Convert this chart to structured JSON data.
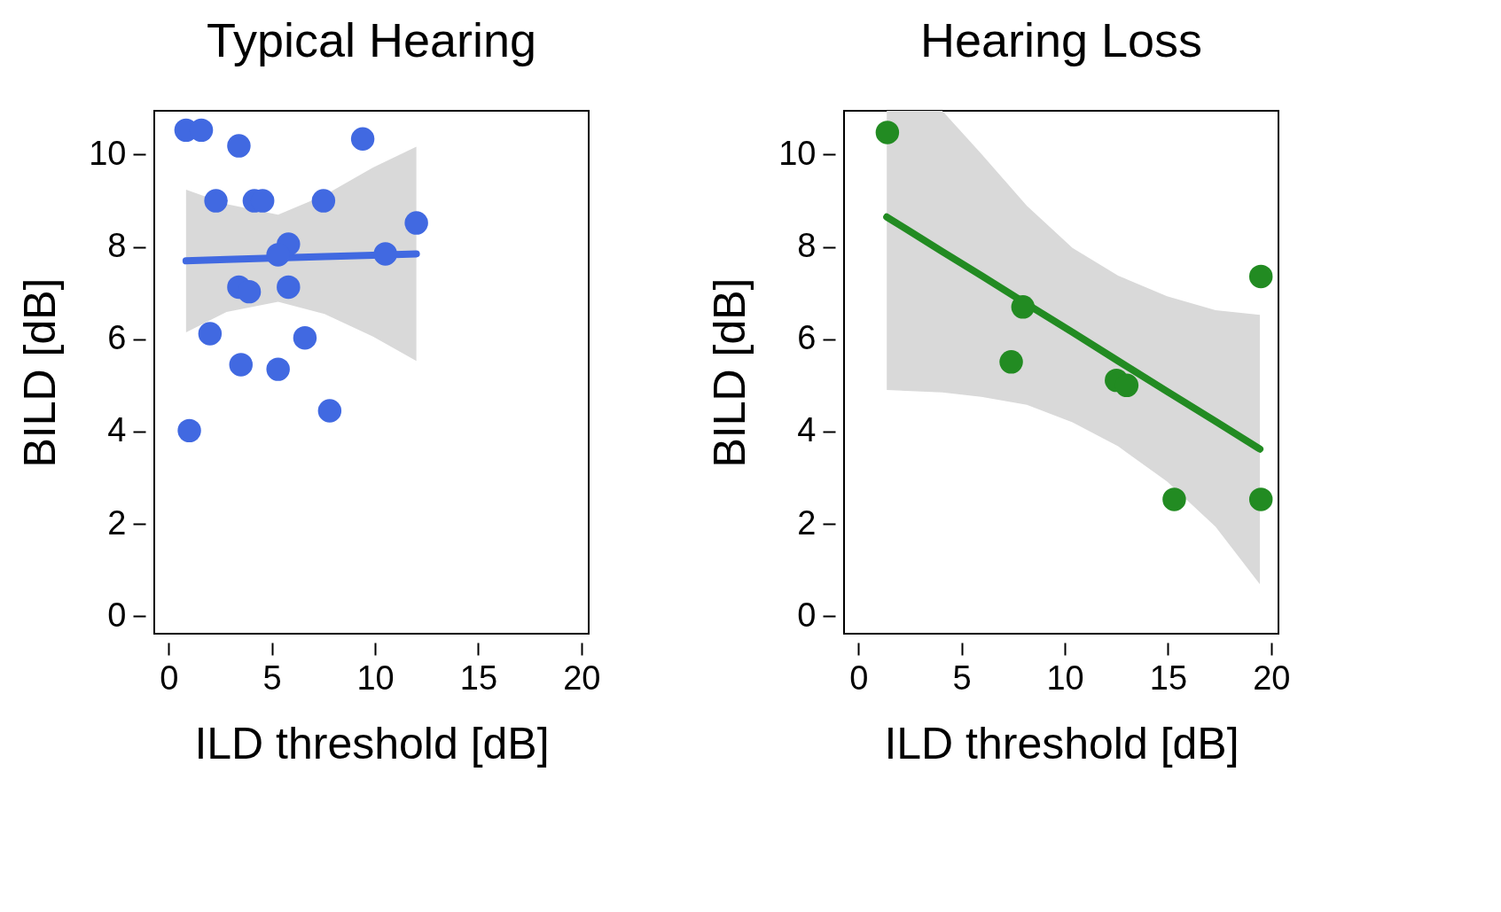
{
  "chart_data": [
    {
      "type": "scatter",
      "title": "Typical Hearing",
      "xlabel": "ILD threshold [dB]",
      "ylabel": "BILD [dB]",
      "xlim": [
        -0.7,
        20.35
      ],
      "ylim": [
        -0.38,
        10.95
      ],
      "xticks": [
        0,
        5,
        10,
        15,
        20
      ],
      "yticks": [
        0,
        2,
        4,
        6,
        8,
        10
      ],
      "grid": false,
      "series": [
        {
          "type": "line",
          "color": "#4169e1",
          "line_style": "solid",
          "x": [
            0.84,
            2.8,
            5.3,
            7.55,
            9.9,
            12
          ],
          "values": [
            7.7,
            7.73,
            7.76,
            7.79,
            7.82,
            7.85
          ],
          "lower": [
            6.15,
            6.59,
            6.81,
            6.55,
            6.06,
            5.53
          ],
          "upper": [
            9.24,
            8.93,
            8.7,
            9.12,
            9.72,
            10.17
          ]
        },
        {
          "color": "#4169e1",
          "marker": "circle",
          "x": [
            0.84,
            1.58,
            3.4,
            9.4,
            2.29,
            4.15,
            4.55,
            7.5,
            12,
            5.8,
            5.3,
            10.5,
            3.4,
            3.9,
            5.8,
            2,
            6.6,
            3.5,
            5.3,
            7.8,
            1
          ],
          "values": [
            10.53,
            10.53,
            10.19,
            10.34,
            9,
            9,
            9,
            9,
            8.52,
            8.06,
            7.83,
            7.85,
            7.13,
            7.03,
            7.13,
            6.12,
            6.03,
            5.45,
            5.35,
            4.45,
            4.02
          ]
        }
      ]
    },
    {
      "type": "scatter",
      "title": "Hearing Loss",
      "xlabel": "ILD threshold [dB]",
      "ylabel": "BILD [dB]",
      "xlim": [
        -0.7,
        20.35
      ],
      "ylim": [
        -0.38,
        10.95
      ],
      "xticks": [
        0,
        5,
        10,
        15,
        20
      ],
      "yticks": [
        0,
        2,
        4,
        6,
        8,
        10
      ],
      "grid": false,
      "series": [
        {
          "type": "line",
          "color": "#228b22",
          "line_style": "solid",
          "x": [
            1.37,
            4.06,
            5.95,
            8.16,
            10.37,
            12.58,
            14.95,
            17.3,
            19.45
          ],
          "values": [
            8.65,
            7.9,
            7.38,
            6.76,
            6.15,
            5.53,
            4.87,
            4.22,
            3.62
          ],
          "lower": [
            4.9,
            4.85,
            4.75,
            4.58,
            4.2,
            3.68,
            2.92,
            1.94,
            0.69
          ],
          "upper": [
            10.95,
            10.95,
            10.02,
            8.89,
            7.98,
            7.38,
            6.93,
            6.63,
            6.53
          ]
        },
        {
          "color": "#228b22",
          "marker": "circle",
          "x": [
            1.4,
            7.97,
            7.4,
            12.5,
            13,
            15.3,
            19.5,
            19.5
          ],
          "values": [
            10.48,
            6.7,
            5.51,
            5.11,
            5,
            2.53,
            7.36,
            2.53
          ]
        }
      ]
    }
  ]
}
